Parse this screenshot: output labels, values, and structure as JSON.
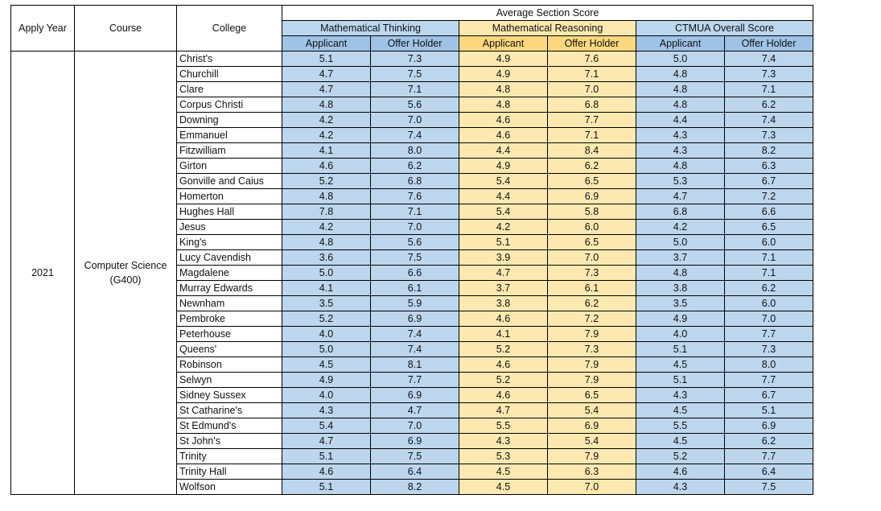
{
  "headers": {
    "apply_year": "Apply Year",
    "course": "Course",
    "college": "College",
    "average_section_score": "Average Section Score",
    "mathematical_thinking": "Mathematical Thinking",
    "mathematical_reasoning": "Mathematical Reasoning",
    "ctmua_overall": "CTMUA Overall Score",
    "applicant": "Applicant",
    "offer_holder": "Offer Holder"
  },
  "apply_year": "2021",
  "course": "Computer Science (G400)",
  "colors": {
    "math_thinking_cell": "#bcd6ee",
    "math_reasoning_cell": "#fde9b0",
    "ctmua_cell": "#bcd6ee",
    "math_thinking_subheader": "#9fc3e7",
    "math_reasoning_subheader": "#fbd87e"
  },
  "rows": [
    {
      "college": "Christ's",
      "mt_app": "5.1",
      "mt_off": "7.3",
      "mr_app": "4.9",
      "mr_off": "7.6",
      "ct_app": "5.0",
      "ct_off": "7.4"
    },
    {
      "college": "Churchill",
      "mt_app": "4.7",
      "mt_off": "7.5",
      "mr_app": "4.9",
      "mr_off": "7.1",
      "ct_app": "4.8",
      "ct_off": "7.3"
    },
    {
      "college": "Clare",
      "mt_app": "4.7",
      "mt_off": "7.1",
      "mr_app": "4.8",
      "mr_off": "7.0",
      "ct_app": "4.8",
      "ct_off": "7.1"
    },
    {
      "college": "Corpus Christi",
      "mt_app": "4.8",
      "mt_off": "5.6",
      "mr_app": "4.8",
      "mr_off": "6.8",
      "ct_app": "4.8",
      "ct_off": "6.2"
    },
    {
      "college": "Downing",
      "mt_app": "4.2",
      "mt_off": "7.0",
      "mr_app": "4.6",
      "mr_off": "7.7",
      "ct_app": "4.4",
      "ct_off": "7.4"
    },
    {
      "college": "Emmanuel",
      "mt_app": "4.2",
      "mt_off": "7.4",
      "mr_app": "4.6",
      "mr_off": "7.1",
      "ct_app": "4.3",
      "ct_off": "7.3"
    },
    {
      "college": "Fitzwilliam",
      "mt_app": "4.1",
      "mt_off": "8.0",
      "mr_app": "4.4",
      "mr_off": "8.4",
      "ct_app": "4.3",
      "ct_off": "8.2"
    },
    {
      "college": "Girton",
      "mt_app": "4.6",
      "mt_off": "6.2",
      "mr_app": "4.9",
      "mr_off": "6.2",
      "ct_app": "4.8",
      "ct_off": "6.3"
    },
    {
      "college": "Gonville and Caius",
      "mt_app": "5.2",
      "mt_off": "6.8",
      "mr_app": "5.4",
      "mr_off": "6.5",
      "ct_app": "5.3",
      "ct_off": "6.7"
    },
    {
      "college": "Homerton",
      "mt_app": "4.8",
      "mt_off": "7.6",
      "mr_app": "4.4",
      "mr_off": "6.9",
      "ct_app": "4.7",
      "ct_off": "7.2"
    },
    {
      "college": "Hughes Hall",
      "mt_app": "7.8",
      "mt_off": "7.1",
      "mr_app": "5.4",
      "mr_off": "5.8",
      "ct_app": "6.8",
      "ct_off": "6.6"
    },
    {
      "college": "Jesus",
      "mt_app": "4.2",
      "mt_off": "7.0",
      "mr_app": "4.2",
      "mr_off": "6.0",
      "ct_app": "4.2",
      "ct_off": "6.5"
    },
    {
      "college": "King's",
      "mt_app": "4.8",
      "mt_off": "5.6",
      "mr_app": "5.1",
      "mr_off": "6.5",
      "ct_app": "5.0",
      "ct_off": "6.0"
    },
    {
      "college": "Lucy Cavendish",
      "mt_app": "3.6",
      "mt_off": "7.5",
      "mr_app": "3.9",
      "mr_off": "7.0",
      "ct_app": "3.7",
      "ct_off": "7.1"
    },
    {
      "college": "Magdalene",
      "mt_app": "5.0",
      "mt_off": "6.6",
      "mr_app": "4.7",
      "mr_off": "7.3",
      "ct_app": "4.8",
      "ct_off": "7.1"
    },
    {
      "college": "Murray Edwards",
      "mt_app": "4.1",
      "mt_off": "6.1",
      "mr_app": "3.7",
      "mr_off": "6.1",
      "ct_app": "3.8",
      "ct_off": "6.2"
    },
    {
      "college": "Newnham",
      "mt_app": "3.5",
      "mt_off": "5.9",
      "mr_app": "3.8",
      "mr_off": "6.2",
      "ct_app": "3.5",
      "ct_off": "6.0"
    },
    {
      "college": "Pembroke",
      "mt_app": "5.2",
      "mt_off": "6.9",
      "mr_app": "4.6",
      "mr_off": "7.2",
      "ct_app": "4.9",
      "ct_off": "7.0"
    },
    {
      "college": "Peterhouse",
      "mt_app": "4.0",
      "mt_off": "7.4",
      "mr_app": "4.1",
      "mr_off": "7.9",
      "ct_app": "4.0",
      "ct_off": "7.7"
    },
    {
      "college": "Queens'",
      "mt_app": "5.0",
      "mt_off": "7.4",
      "mr_app": "5.2",
      "mr_off": "7.3",
      "ct_app": "5.1",
      "ct_off": "7.3"
    },
    {
      "college": "Robinson",
      "mt_app": "4.5",
      "mt_off": "8.1",
      "mr_app": "4.6",
      "mr_off": "7.9",
      "ct_app": "4.5",
      "ct_off": "8.0"
    },
    {
      "college": "Selwyn",
      "mt_app": "4.9",
      "mt_off": "7.7",
      "mr_app": "5.2",
      "mr_off": "7.9",
      "ct_app": "5.1",
      "ct_off": "7.7"
    },
    {
      "college": "Sidney Sussex",
      "mt_app": "4.0",
      "mt_off": "6.9",
      "mr_app": "4.6",
      "mr_off": "6.5",
      "ct_app": "4.3",
      "ct_off": "6.7"
    },
    {
      "college": "St Catharine's",
      "mt_app": "4.3",
      "mt_off": "4.7",
      "mr_app": "4.7",
      "mr_off": "5.4",
      "ct_app": "4.5",
      "ct_off": "5.1"
    },
    {
      "college": "St Edmund's",
      "mt_app": "5.4",
      "mt_off": "7.0",
      "mr_app": "5.5",
      "mr_off": "6.9",
      "ct_app": "5.5",
      "ct_off": "6.9"
    },
    {
      "college": "St John's",
      "mt_app": "4.7",
      "mt_off": "6.9",
      "mr_app": "4.3",
      "mr_off": "5.4",
      "ct_app": "4.5",
      "ct_off": "6.2"
    },
    {
      "college": "Trinity",
      "mt_app": "5.1",
      "mt_off": "7.5",
      "mr_app": "5.3",
      "mr_off": "7.9",
      "ct_app": "5.2",
      "ct_off": "7.7"
    },
    {
      "college": "Trinity Hall",
      "mt_app": "4.6",
      "mt_off": "6.4",
      "mr_app": "4.5",
      "mr_off": "6.3",
      "ct_app": "4.6",
      "ct_off": "6.4"
    },
    {
      "college": "Wolfson",
      "mt_app": "5.1",
      "mt_off": "8.2",
      "mr_app": "4.5",
      "mr_off": "7.0",
      "ct_app": "4.3",
      "ct_off": "7.5"
    }
  ]
}
